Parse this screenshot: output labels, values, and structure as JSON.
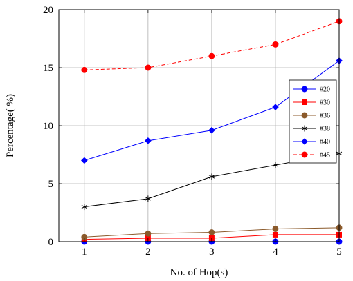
{
  "chart_data": {
    "type": "line",
    "xlabel": "No. of Hop(s)",
    "ylabel": "Percentage( %)",
    "x": [
      1,
      2,
      3,
      4,
      5
    ],
    "xticks": [
      "1",
      "2",
      "3",
      "4",
      "5"
    ],
    "yticks": [
      "0",
      "5",
      "10",
      "15",
      "20"
    ],
    "xlim": [
      0.6,
      5.0
    ],
    "ylim": [
      0,
      20
    ],
    "grid": true,
    "legend_position": "right",
    "series": [
      {
        "name": "#20",
        "values": [
          0.0,
          0.0,
          0.0,
          0.0,
          0.0
        ],
        "color": "#0000ff",
        "marker": "circle",
        "dash": "solid"
      },
      {
        "name": "#30",
        "values": [
          0.2,
          0.3,
          0.3,
          0.6,
          0.6
        ],
        "color": "#ff0000",
        "marker": "square",
        "dash": "solid"
      },
      {
        "name": "#36",
        "values": [
          0.4,
          0.7,
          0.8,
          1.1,
          1.2
        ],
        "color": "#8b5a2b",
        "marker": "circle",
        "dash": "solid"
      },
      {
        "name": "#38",
        "values": [
          3.0,
          3.7,
          5.6,
          6.6,
          7.6
        ],
        "color": "#000000",
        "marker": "star",
        "dash": "solid"
      },
      {
        "name": "#40",
        "values": [
          7.0,
          8.7,
          9.6,
          11.6,
          15.6
        ],
        "color": "#0000ff",
        "marker": "diamond",
        "dash": "solid"
      },
      {
        "name": "#45",
        "values": [
          14.8,
          15.0,
          16.0,
          17.0,
          19.0
        ],
        "color": "#ff0000",
        "marker": "circle",
        "dash": "dashed"
      }
    ]
  }
}
